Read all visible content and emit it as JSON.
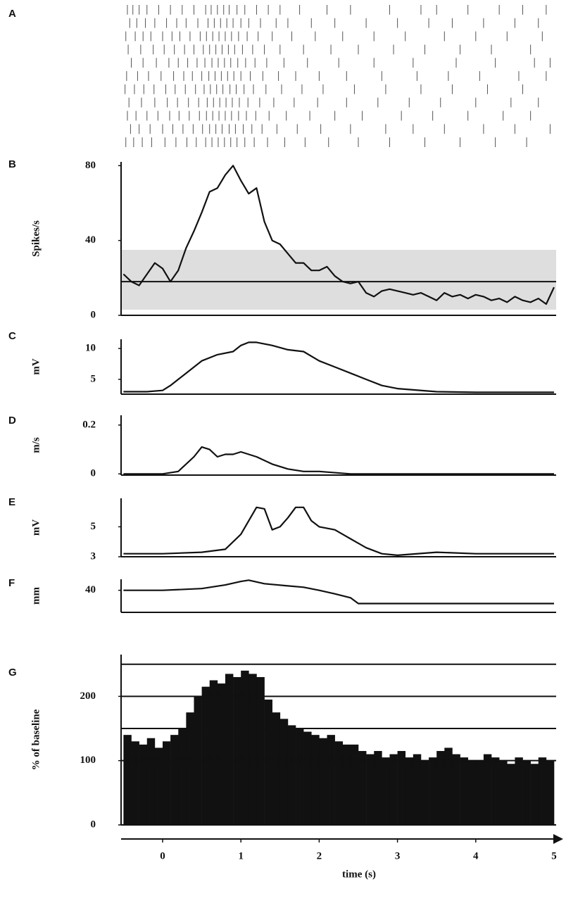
{
  "chart_data": [
    {
      "type": "raster",
      "label": "A",
      "xlim": [
        -0.5,
        5
      ],
      "trials": [
        [
          -0.45,
          -0.38,
          -0.3,
          -0.2,
          -0.05,
          0.1,
          0.25,
          0.4,
          0.55,
          0.62,
          0.7,
          0.78,
          0.85,
          0.95,
          1.05,
          1.2,
          1.35,
          1.5,
          1.75,
          2.1,
          2.4,
          2.9,
          3.3,
          3.5,
          3.9,
          4.3,
          4.6,
          4.9
        ],
        [
          -0.42,
          -0.33,
          -0.22,
          -0.1,
          0.05,
          0.18,
          0.3,
          0.45,
          0.58,
          0.66,
          0.74,
          0.82,
          0.9,
          1.0,
          1.1,
          1.25,
          1.45,
          1.6,
          1.9,
          2.2,
          2.6,
          3.0,
          3.4,
          3.7,
          4.1,
          4.5,
          4.8
        ],
        [
          -0.47,
          -0.35,
          -0.25,
          -0.15,
          0.0,
          0.12,
          0.22,
          0.35,
          0.48,
          0.56,
          0.64,
          0.72,
          0.8,
          0.88,
          0.97,
          1.08,
          1.22,
          1.4,
          1.65,
          1.95,
          2.3,
          2.7,
          3.1,
          3.6,
          4.0,
          4.4,
          4.85
        ],
        [
          -0.44,
          -0.28,
          -0.12,
          0.02,
          0.15,
          0.28,
          0.4,
          0.52,
          0.6,
          0.68,
          0.76,
          0.84,
          0.92,
          1.02,
          1.15,
          1.3,
          1.5,
          1.8,
          2.15,
          2.5,
          2.95,
          3.35,
          3.8,
          4.2,
          4.7
        ],
        [
          -0.4,
          -0.25,
          -0.08,
          0.08,
          0.2,
          0.32,
          0.44,
          0.54,
          0.63,
          0.71,
          0.79,
          0.87,
          0.96,
          1.06,
          1.18,
          1.33,
          1.55,
          1.85,
          2.25,
          2.7,
          3.2,
          3.75,
          4.25,
          4.75,
          4.95
        ],
        [
          -0.46,
          -0.32,
          -0.18,
          -0.02,
          0.14,
          0.27,
          0.38,
          0.5,
          0.59,
          0.67,
          0.75,
          0.83,
          0.91,
          1.0,
          1.12,
          1.28,
          1.48,
          1.7,
          2.0,
          2.35,
          2.8,
          3.25,
          3.65,
          4.05,
          4.55,
          4.9
        ],
        [
          -0.48,
          -0.36,
          -0.24,
          -0.11,
          0.04,
          0.16,
          0.29,
          0.42,
          0.53,
          0.61,
          0.69,
          0.77,
          0.86,
          0.94,
          1.04,
          1.16,
          1.32,
          1.52,
          1.78,
          2.05,
          2.45,
          2.85,
          3.3,
          3.7,
          4.15,
          4.6
        ],
        [
          -0.43,
          -0.27,
          -0.1,
          0.06,
          0.19,
          0.33,
          0.46,
          0.57,
          0.65,
          0.73,
          0.81,
          0.89,
          0.98,
          1.09,
          1.24,
          1.42,
          1.68,
          1.98,
          2.35,
          2.75,
          3.15,
          3.55,
          4.0,
          4.45,
          4.8
        ],
        [
          -0.45,
          -0.34,
          -0.2,
          -0.06,
          0.09,
          0.21,
          0.34,
          0.47,
          0.56,
          0.64,
          0.72,
          0.8,
          0.88,
          0.97,
          1.07,
          1.19,
          1.36,
          1.58,
          1.88,
          2.2,
          2.55,
          3.05,
          3.45,
          3.9,
          4.35,
          4.7
        ],
        [
          -0.41,
          -0.3,
          -0.16,
          0.0,
          0.13,
          0.26,
          0.39,
          0.51,
          0.6,
          0.68,
          0.76,
          0.85,
          0.93,
          1.03,
          1.14,
          1.27,
          1.46,
          1.72,
          2.02,
          2.4,
          2.85,
          3.2,
          3.6,
          4.1,
          4.5,
          4.95
        ],
        [
          -0.47,
          -0.37,
          -0.26,
          -0.14,
          0.03,
          0.17,
          0.31,
          0.43,
          0.55,
          0.63,
          0.71,
          0.79,
          0.87,
          0.95,
          1.05,
          1.17,
          1.34,
          1.56,
          1.82,
          2.12,
          2.5,
          2.9,
          3.35,
          3.8,
          4.25,
          4.65
        ]
      ]
    },
    {
      "type": "line",
      "label": "B",
      "ylabel": "Spikes/s",
      "xlim": [
        -0.5,
        5
      ],
      "ylim": [
        0,
        82
      ],
      "yticks": [
        0,
        40,
        80
      ],
      "band": [
        3,
        35
      ],
      "hline": 18,
      "color": "#111111",
      "x": [
        -0.5,
        -0.4,
        -0.3,
        -0.2,
        -0.1,
        0,
        0.1,
        0.2,
        0.3,
        0.4,
        0.5,
        0.6,
        0.7,
        0.8,
        0.9,
        1.0,
        1.1,
        1.2,
        1.3,
        1.4,
        1.5,
        1.6,
        1.7,
        1.8,
        1.9,
        2.0,
        2.1,
        2.2,
        2.3,
        2.4,
        2.5,
        2.6,
        2.7,
        2.8,
        2.9,
        3.0,
        3.1,
        3.2,
        3.3,
        3.4,
        3.5,
        3.6,
        3.7,
        3.8,
        3.9,
        4.0,
        4.1,
        4.2,
        4.3,
        4.4,
        4.5,
        4.6,
        4.7,
        4.8,
        4.9,
        5.0
      ],
      "values": [
        22,
        18,
        16,
        22,
        28,
        25,
        18,
        24,
        36,
        45,
        55,
        66,
        68,
        75,
        80,
        72,
        65,
        68,
        50,
        40,
        38,
        33,
        28,
        28,
        24,
        24,
        26,
        21,
        18,
        17,
        18,
        12,
        10,
        13,
        14,
        13,
        12,
        11,
        12,
        10,
        8,
        12,
        10,
        11,
        9,
        11,
        10,
        8,
        9,
        7,
        10,
        8,
        7,
        9,
        6,
        15
      ]
    },
    {
      "type": "line",
      "label": "C",
      "ylabel": "mV",
      "xlim": [
        -0.5,
        5
      ],
      "ylim": [
        2.6,
        11.5
      ],
      "yticks": [
        5,
        10
      ],
      "color": "#111111",
      "x": [
        -0.5,
        -0.2,
        0,
        0.1,
        0.3,
        0.5,
        0.7,
        0.9,
        1.0,
        1.1,
        1.2,
        1.4,
        1.6,
        1.8,
        2.0,
        2.2,
        2.4,
        2.6,
        2.8,
        3.0,
        3.5,
        4.0,
        4.5,
        5.0
      ],
      "values": [
        3,
        3,
        3.2,
        4,
        6,
        8,
        9,
        9.5,
        10.5,
        11,
        11,
        10.5,
        9.8,
        9.5,
        8,
        7,
        6,
        5,
        4,
        3.5,
        3,
        2.9,
        2.9,
        2.9
      ]
    },
    {
      "type": "line",
      "label": "D",
      "ylabel": "m/s",
      "xlim": [
        -0.5,
        5
      ],
      "ylim": [
        -0.005,
        0.24
      ],
      "yticks": [
        0,
        0.2
      ],
      "color": "#111111",
      "x": [
        -0.5,
        0,
        0.2,
        0.4,
        0.5,
        0.6,
        0.7,
        0.8,
        0.9,
        1.0,
        1.2,
        1.4,
        1.6,
        1.8,
        2.0,
        2.4,
        2.5,
        5.0
      ],
      "values": [
        0,
        0,
        0.01,
        0.07,
        0.11,
        0.1,
        0.07,
        0.08,
        0.08,
        0.09,
        0.07,
        0.04,
        0.02,
        0.01,
        0.01,
        0,
        0,
        0
      ]
    },
    {
      "type": "line",
      "label": "E",
      "ylabel": "mV",
      "xlim": [
        -0.5,
        5
      ],
      "ylim": [
        3,
        6.9
      ],
      "yticks": [
        3,
        5
      ],
      "color": "#111111",
      "x": [
        -0.5,
        0,
        0.5,
        0.8,
        1.0,
        1.2,
        1.3,
        1.4,
        1.5,
        1.6,
        1.7,
        1.8,
        1.9,
        2.0,
        2.2,
        2.4,
        2.6,
        2.8,
        3.0,
        3.5,
        4.0,
        4.5,
        5.0
      ],
      "values": [
        3.2,
        3.2,
        3.3,
        3.5,
        4.5,
        6.3,
        6.2,
        4.8,
        5,
        5.6,
        6.3,
        6.3,
        5.4,
        5,
        4.8,
        4.2,
        3.6,
        3.2,
        3.1,
        3.3,
        3.2,
        3.2,
        3.2
      ]
    },
    {
      "type": "line",
      "label": "F",
      "ylabel": "mm",
      "xlim": [
        -0.5,
        5
      ],
      "ylim": [
        35,
        42.5
      ],
      "yticks": [
        40
      ],
      "color": "#111111",
      "x": [
        -0.5,
        0,
        0.5,
        0.8,
        1.0,
        1.1,
        1.3,
        1.6,
        1.8,
        2.0,
        2.2,
        2.4,
        2.5,
        5.0
      ],
      "values": [
        40,
        40,
        40.4,
        41.2,
        42,
        42.3,
        41.5,
        41,
        40.7,
        40,
        39.2,
        38.3,
        37,
        37
      ]
    },
    {
      "type": "histogram",
      "label": "G",
      "ylabel": "% of baseline",
      "xlim": [
        -0.5,
        5
      ],
      "ylim": [
        0,
        265
      ],
      "yticks": [
        0,
        100,
        200
      ],
      "hlines": [
        100,
        150,
        200,
        250
      ],
      "color": "#111111",
      "bins": [
        -0.5,
        -0.4,
        -0.3,
        -0.2,
        -0.1,
        0,
        0.1,
        0.2,
        0.3,
        0.4,
        0.5,
        0.6,
        0.7,
        0.8,
        0.9,
        1.0,
        1.1,
        1.2,
        1.3,
        1.4,
        1.5,
        1.6,
        1.7,
        1.8,
        1.9,
        2.0,
        2.1,
        2.2,
        2.3,
        2.4,
        2.5,
        2.6,
        2.7,
        2.8,
        2.9,
        3.0,
        3.1,
        3.2,
        3.3,
        3.4,
        3.5,
        3.6,
        3.7,
        3.8,
        3.9,
        4.0,
        4.1,
        4.2,
        4.3,
        4.4,
        4.5,
        4.6,
        4.7,
        4.8,
        4.9,
        5.0
      ],
      "values": [
        140,
        130,
        125,
        135,
        120,
        130,
        140,
        150,
        175,
        200,
        215,
        225,
        220,
        235,
        230,
        240,
        235,
        230,
        195,
        175,
        165,
        155,
        150,
        145,
        140,
        135,
        140,
        130,
        125,
        125,
        115,
        110,
        115,
        105,
        110,
        115,
        105,
        110,
        100,
        105,
        115,
        120,
        110,
        105,
        100,
        100,
        110,
        105,
        100,
        95,
        105,
        100,
        95,
        105,
        100
      ]
    },
    {
      "type": "axis",
      "xlabel": "time (s)",
      "xlim": [
        -0.5,
        5
      ],
      "xticks": [
        0,
        1,
        2,
        3,
        4,
        5
      ]
    }
  ]
}
